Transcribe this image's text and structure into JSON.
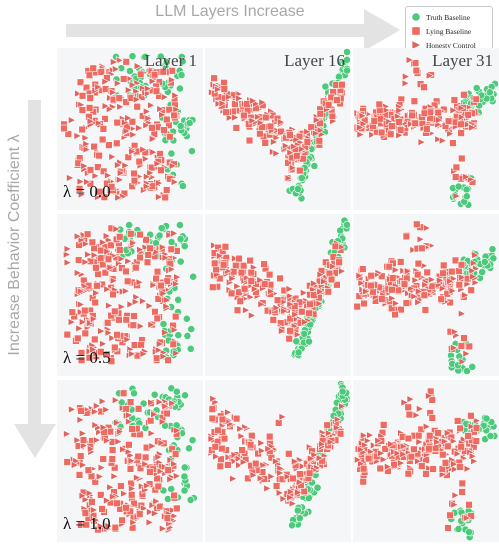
{
  "x_axis_title": "LLM Layers Increase",
  "y_axis_title": "Increase Behavior Coefficient λ",
  "legend": [
    {
      "label": "Truth Baseline",
      "color": "#4cc97b",
      "marker": "circle"
    },
    {
      "label": "Lying Baseline",
      "color": "#ee6b62",
      "marker": "square"
    },
    {
      "label": "Honesty Control",
      "color": "#e0645e",
      "marker": "triangle"
    }
  ],
  "columns": [
    {
      "label": "Layer 1",
      "layer": 1
    },
    {
      "label": "Layer 16",
      "layer": 16
    },
    {
      "label": "Layer 31",
      "layer": 31
    }
  ],
  "rows": [
    {
      "label": "λ = 0.0",
      "lambda": 0.0
    },
    {
      "label": "λ = 0.5",
      "lambda": 0.5
    },
    {
      "label": "λ = 1.0",
      "lambda": 1.0
    }
  ],
  "colors": {
    "truth": "#4cc97b",
    "lying": "#ee6b62",
    "control": "#e0645e",
    "panel_bg": "#f4f6f8"
  },
  "chart_data": {
    "type": "scatter",
    "grid": false,
    "legend_position": "top-right",
    "series": [
      {
        "name": "Truth Baseline"
      },
      {
        "name": "Lying Baseline"
      },
      {
        "name": "Honesty Control"
      }
    ]
  }
}
